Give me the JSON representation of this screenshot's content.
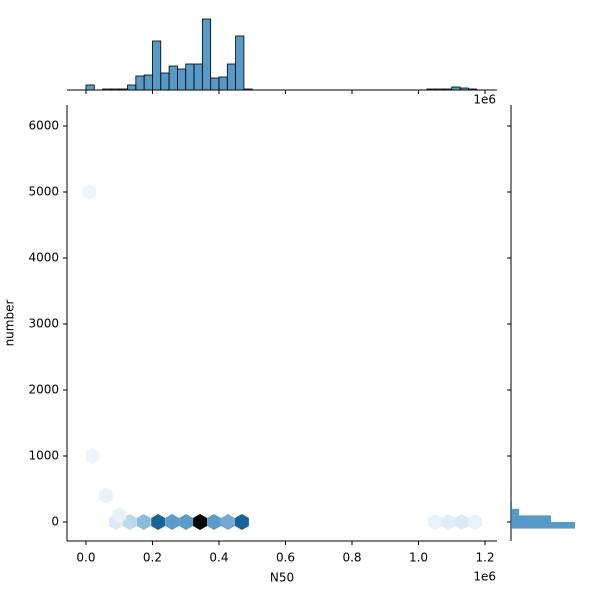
{
  "chart_data": {
    "type": "hexbin_joint",
    "x_label": "N50",
    "y_label": "number",
    "x_offset_label": "1e6",
    "top_offset_label": "1e6",
    "xlim": [
      -57000,
      1236000
    ],
    "ylim": [
      -288,
      6318
    ],
    "xticks": [
      {
        "value": 0,
        "label": "0.0"
      },
      {
        "value": 200000,
        "label": "0.2"
      },
      {
        "value": 400000,
        "label": "0.4"
      },
      {
        "value": 600000,
        "label": "0.6"
      },
      {
        "value": 800000,
        "label": "0.8"
      },
      {
        "value": 1000000,
        "label": "1.0"
      },
      {
        "value": 1200000,
        "label": "1.2"
      }
    ],
    "yticks": [
      0,
      1000,
      2000,
      3000,
      4000,
      5000,
      6000
    ],
    "color": "#1f77b4",
    "hexes": {
      "x": [
        90000,
        132000,
        174000,
        217000,
        259000,
        301000,
        343000,
        385000,
        427000,
        469000,
        1050000,
        1090000,
        1130000,
        1170000,
        10000,
        20000,
        60000,
        100000
      ],
      "y": [
        0,
        0,
        0,
        0,
        0,
        0,
        0,
        0,
        0,
        0,
        0,
        0,
        0,
        0,
        5000,
        1000,
        400,
        100
      ],
      "counts": [
        8,
        20,
        40,
        90,
        60,
        60,
        120,
        60,
        50,
        90,
        3,
        6,
        8,
        3,
        1,
        1,
        2,
        3
      ]
    },
    "x_marginal": {
      "bins": [
        0,
        25000,
        50000,
        75000,
        100000,
        125000,
        150000,
        175000,
        200000,
        225000,
        250000,
        275000,
        300000,
        325000,
        350000,
        375000,
        400000,
        425000,
        450000,
        475000,
        500000,
        525000,
        550000,
        575000,
        600000,
        625000,
        650000,
        675000,
        700000,
        725000,
        750000,
        775000,
        800000,
        825000,
        850000,
        875000,
        900000,
        925000,
        950000,
        975000,
        1000000,
        1025000,
        1050000,
        1075000,
        1100000,
        1125000,
        1150000,
        1175000,
        1200000
      ],
      "counts": [
        5,
        0,
        1,
        1,
        1,
        5,
        14,
        15,
        49,
        17,
        24,
        21,
        26,
        26,
        71,
        12,
        13,
        26,
        54,
        1,
        0,
        0,
        0,
        0,
        0,
        0,
        0,
        0,
        0,
        0,
        0,
        0,
        0,
        0,
        0,
        0,
        0,
        0,
        0,
        0,
        0,
        1,
        1,
        1,
        3,
        2,
        1,
        0
      ]
    },
    "y_marginal": {
      "bins": [
        -100,
        0,
        100,
        200,
        300
      ],
      "counts": [
        64,
        40,
        8,
        1
      ]
    }
  }
}
